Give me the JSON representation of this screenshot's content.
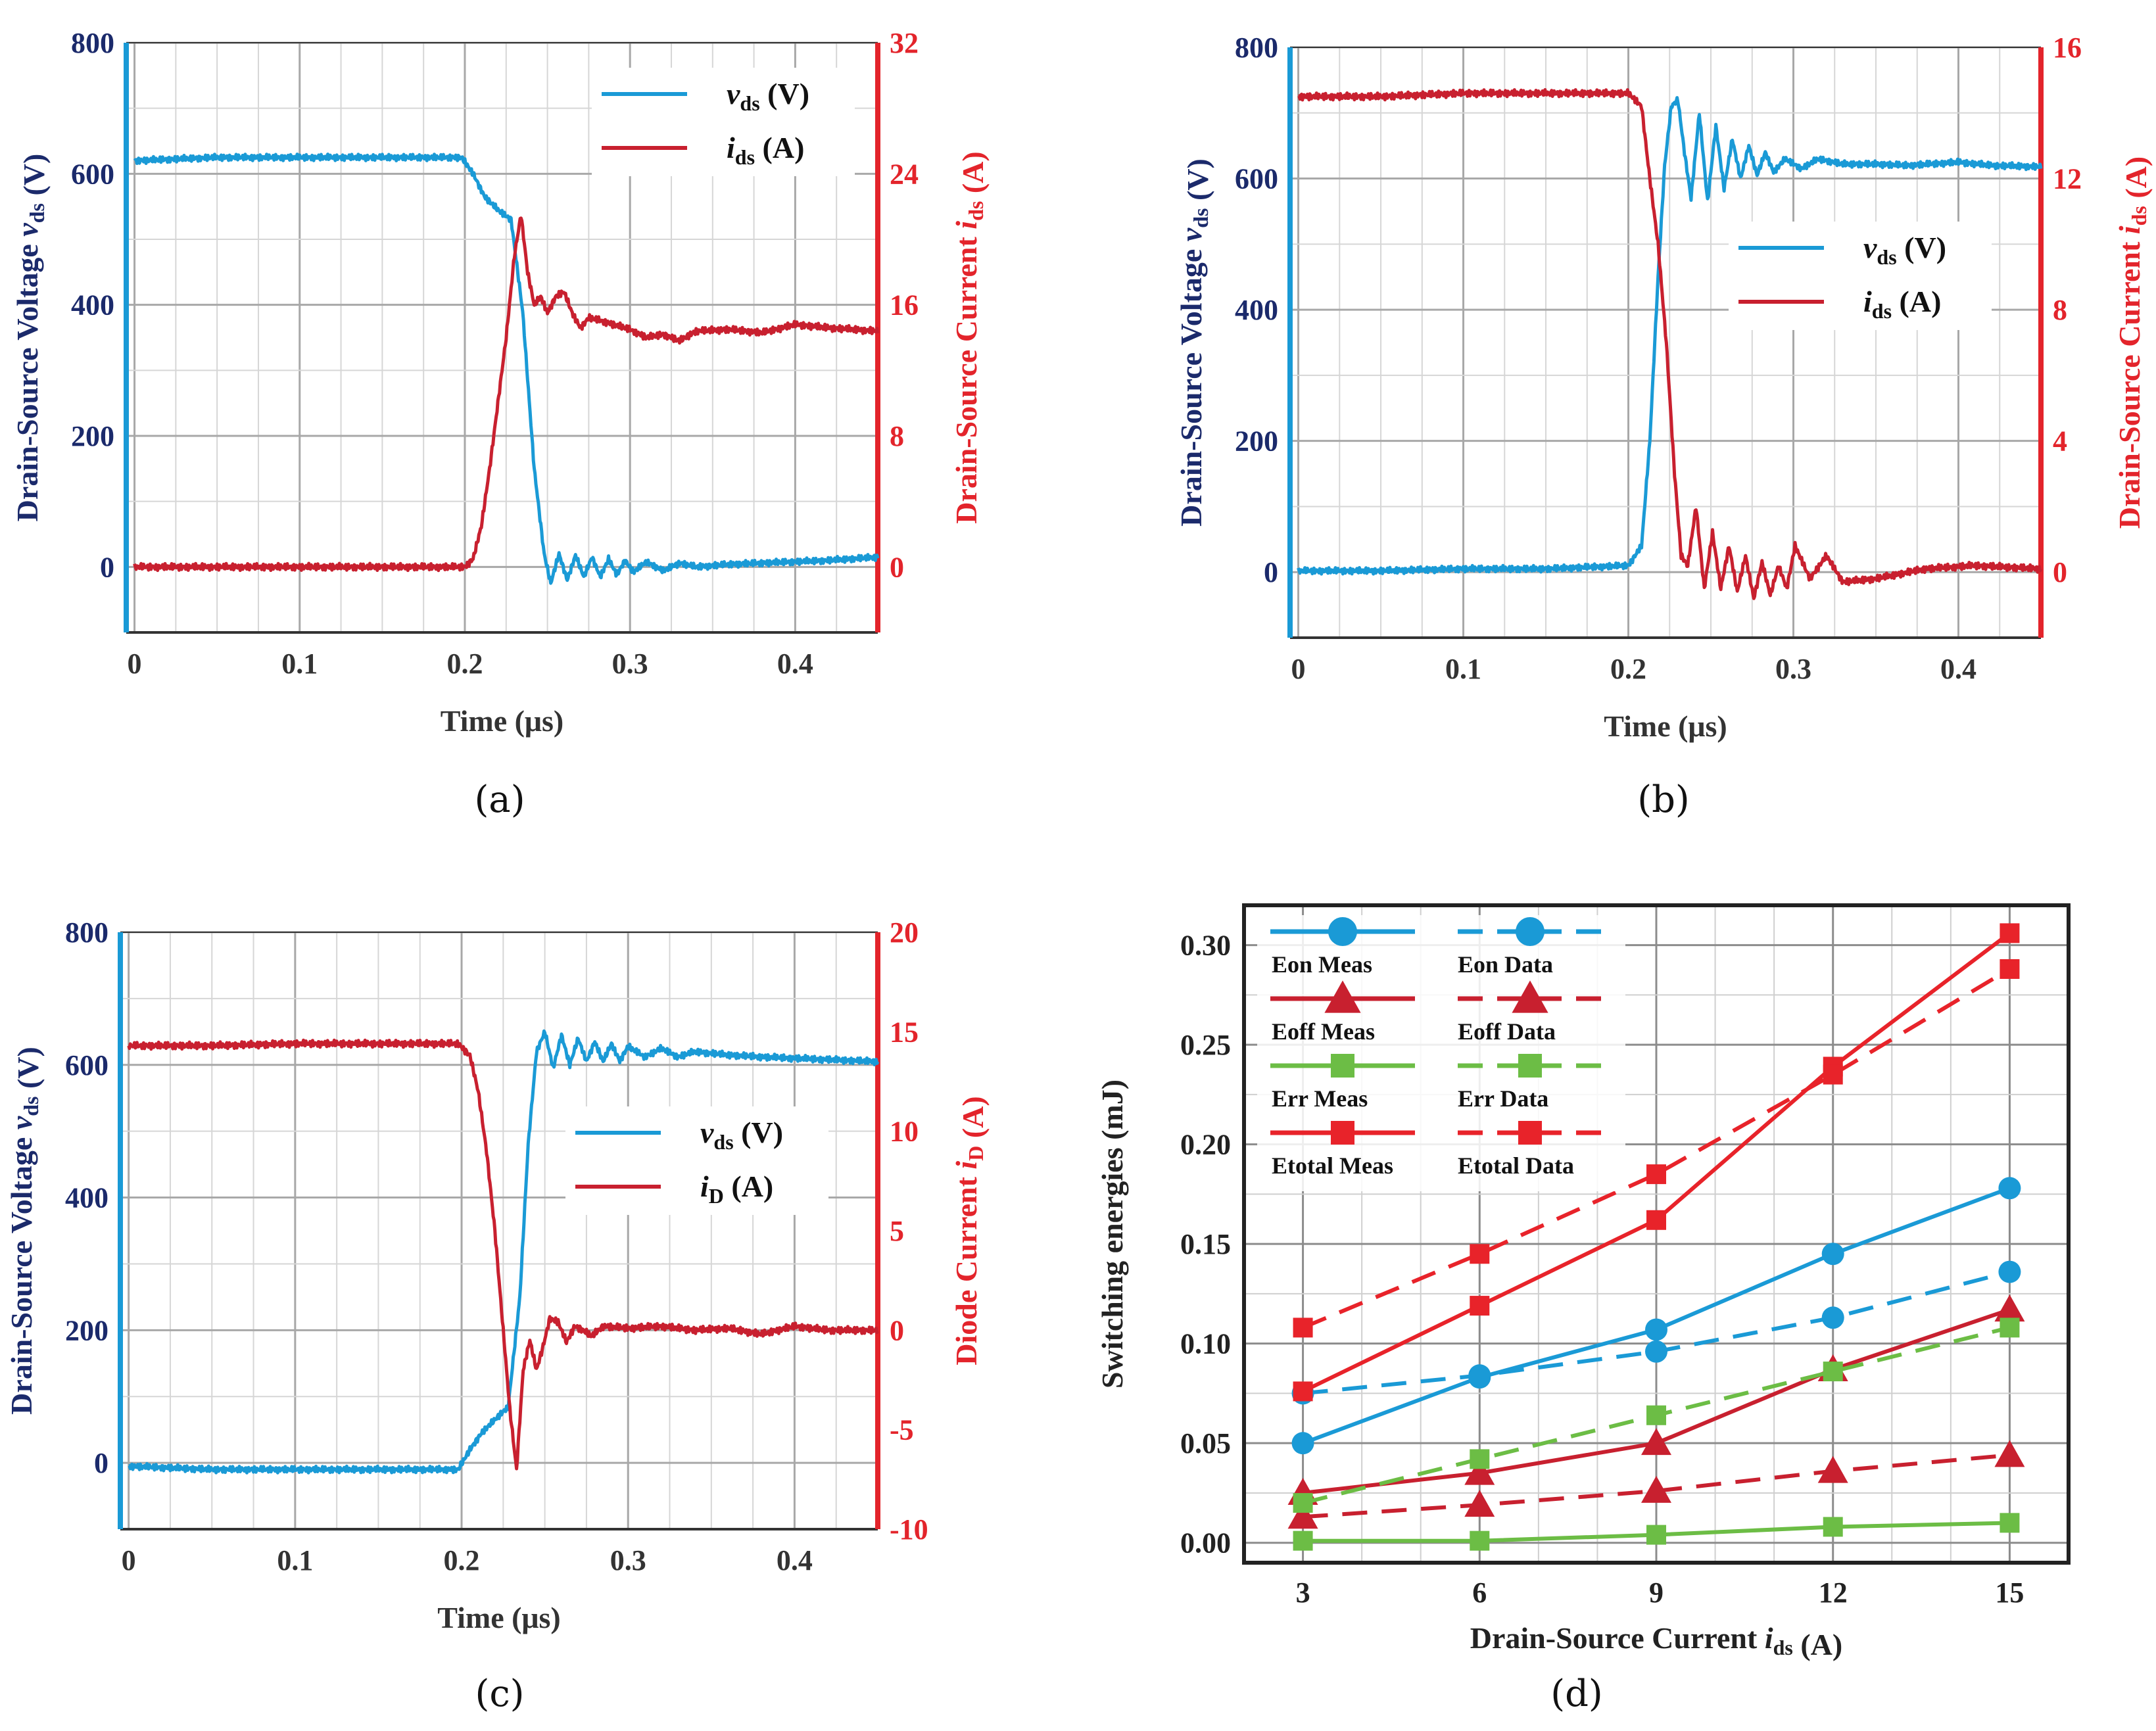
{
  "colors": {
    "blue": "#1a9ad6",
    "red": "#c8202f",
    "navy": "#1b2a6b",
    "axisRed": "#e3242b",
    "green": "#6cbd45",
    "brightRed": "#e8232a",
    "grid": "#bdbdbd"
  },
  "chart_data": [
    {
      "panel": "a",
      "caption": "(a)",
      "type": "line",
      "xlabel": "Time (μs)",
      "ylabel_left": "Drain-Source Voltage v_ds (V)",
      "ylabel_right": "Drain-Source Current i_ds (A)",
      "xlim": [
        -0.005,
        0.45
      ],
      "ylim_left": [
        -100,
        800
      ],
      "ylim_right": [
        -4,
        32
      ],
      "xticks": [
        "0",
        "0.1",
        "0.2",
        "0.3",
        "0.4"
      ],
      "xtick_values": [
        0,
        0.1,
        0.2,
        0.3,
        0.4
      ],
      "yticks_left": [
        "0",
        "200",
        "400",
        "600",
        "800"
      ],
      "ytick_left_values": [
        0,
        200,
        400,
        600,
        800
      ],
      "yticks_right": [
        "0",
        "8",
        "16",
        "24",
        "32"
      ],
      "ytick_right_values": [
        0,
        8,
        16,
        24,
        32
      ],
      "legend": {
        "position": "top-right",
        "entries": [
          {
            "sym": "v",
            "sub": "ds",
            "unit": " (V)"
          },
          {
            "sym": "i",
            "sub": "ds",
            "unit": " (A)"
          }
        ]
      },
      "series": [
        {
          "name": "vds (V)",
          "axis": "left",
          "color": "blue",
          "x": [
            0,
            0.05,
            0.1,
            0.15,
            0.198,
            0.205,
            0.212,
            0.22,
            0.228,
            0.235,
            0.242,
            0.248,
            0.252,
            0.257,
            0.262,
            0.267,
            0.272,
            0.277,
            0.282,
            0.287,
            0.292,
            0.297,
            0.302,
            0.31,
            0.32,
            0.33,
            0.34,
            0.36,
            0.38,
            0.4,
            0.42,
            0.45
          ],
          "values": [
            620,
            625,
            625,
            625,
            625,
            600,
            565,
            545,
            530,
            390,
            150,
            20,
            -25,
            20,
            -20,
            18,
            -15,
            15,
            -15,
            12,
            -12,
            10,
            -8,
            8,
            -6,
            6,
            0,
            4,
            6,
            8,
            10,
            15
          ]
        },
        {
          "name": "ids (A)",
          "axis": "right",
          "color": "red",
          "x": [
            0,
            0.05,
            0.1,
            0.15,
            0.2,
            0.205,
            0.21,
            0.215,
            0.22,
            0.225,
            0.23,
            0.234,
            0.238,
            0.242,
            0.246,
            0.25,
            0.255,
            0.26,
            0.265,
            0.27,
            0.275,
            0.28,
            0.29,
            0.3,
            0.31,
            0.32,
            0.33,
            0.34,
            0.36,
            0.38,
            0.4,
            0.42,
            0.45
          ],
          "values": [
            0,
            0,
            0,
            0,
            0,
            0.5,
            2.5,
            6,
            10,
            14,
            19,
            21.5,
            18,
            16,
            16.5,
            15.5,
            16.5,
            16.8,
            15.5,
            14.6,
            15.2,
            15.1,
            14.8,
            14.5,
            14.0,
            14.2,
            13.8,
            14.4,
            14.5,
            14.3,
            14.8,
            14.6,
            14.4
          ]
        }
      ]
    },
    {
      "panel": "b",
      "caption": "(b)",
      "type": "line",
      "xlabel": "Time (μs)",
      "ylabel_left": "Drain-Source Voltage v_ds (V)",
      "ylabel_right": "Drain-Source Current i_ds (A)",
      "xlim": [
        -0.005,
        0.45
      ],
      "ylim_left": [
        -100,
        800
      ],
      "ylim_right": [
        -2,
        16
      ],
      "xticks": [
        "0",
        "0.1",
        "0.2",
        "0.3",
        "0.4"
      ],
      "xtick_values": [
        0,
        0.1,
        0.2,
        0.3,
        0.4
      ],
      "yticks_left": [
        "0",
        "200",
        "400",
        "600",
        "800"
      ],
      "ytick_left_values": [
        0,
        200,
        400,
        600,
        800
      ],
      "yticks_right": [
        "0",
        "4",
        "8",
        "12",
        "16"
      ],
      "ytick_right_values": [
        0,
        4,
        8,
        12,
        16
      ],
      "legend": {
        "position": "center-right",
        "entries": [
          {
            "sym": "v",
            "sub": "ds",
            "unit": " (V)"
          },
          {
            "sym": "i",
            "sub": "ds",
            "unit": " (A)"
          }
        ]
      },
      "series": [
        {
          "name": "vds (V)",
          "axis": "left",
          "color": "blue",
          "x": [
            0,
            0.05,
            0.1,
            0.15,
            0.2,
            0.208,
            0.213,
            0.218,
            0.222,
            0.226,
            0.23,
            0.234,
            0.238,
            0.243,
            0.248,
            0.253,
            0.258,
            0.263,
            0.268,
            0.273,
            0.278,
            0.283,
            0.288,
            0.295,
            0.305,
            0.315,
            0.33,
            0.35,
            0.37,
            0.4,
            0.42,
            0.45
          ],
          "values": [
            2,
            2,
            5,
            5,
            10,
            40,
            200,
            450,
            620,
            710,
            720,
            640,
            570,
            700,
            565,
            680,
            585,
            660,
            600,
            650,
            605,
            640,
            610,
            630,
            615,
            630,
            622,
            622,
            620,
            625,
            620,
            618
          ]
        },
        {
          "name": "ids (A)",
          "axis": "right",
          "color": "red",
          "x": [
            0,
            0.05,
            0.1,
            0.15,
            0.2,
            0.208,
            0.213,
            0.218,
            0.223,
            0.228,
            0.232,
            0.236,
            0.241,
            0.246,
            0.251,
            0.256,
            0.261,
            0.266,
            0.271,
            0.276,
            0.281,
            0.286,
            0.291,
            0.296,
            0.301,
            0.31,
            0.32,
            0.33,
            0.35,
            0.38,
            0.41,
            0.45
          ],
          "values": [
            14.5,
            14.5,
            14.6,
            14.6,
            14.6,
            14.2,
            12,
            10,
            7,
            3,
            0.5,
            0.2,
            2,
            -0.5,
            1.2,
            -0.5,
            0.8,
            -0.6,
            0.5,
            -0.8,
            0.3,
            -0.7,
            0.2,
            -0.5,
            0.8,
            -0.2,
            0.5,
            -0.3,
            -0.2,
            0.1,
            0.2,
            0.1
          ]
        }
      ]
    },
    {
      "panel": "c",
      "caption": "(c)",
      "type": "line",
      "xlabel": "Time (μs)",
      "ylabel_left": "Drain-Source Voltage v_ds (V)",
      "ylabel_right": "Diode Current i_D (A)",
      "xlim": [
        -0.005,
        0.45
      ],
      "ylim_left": [
        -100,
        800
      ],
      "ylim_right": [
        -10,
        20
      ],
      "xticks": [
        "0",
        "0.1",
        "0.2",
        "0.3",
        "0.4"
      ],
      "xtick_values": [
        0,
        0.1,
        0.2,
        0.3,
        0.4
      ],
      "yticks_left": [
        "0",
        "200",
        "400",
        "600",
        "800"
      ],
      "ytick_left_values": [
        0,
        200,
        400,
        600,
        800
      ],
      "yticks_right": [
        "-10",
        "-5",
        "0",
        "5",
        "10",
        "15",
        "20"
      ],
      "ytick_right_values": [
        -10,
        -5,
        0,
        5,
        10,
        15,
        20
      ],
      "legend": {
        "position": "center-right",
        "entries": [
          {
            "sym": "v",
            "sub": "ds",
            "unit": " (V)"
          },
          {
            "sym": "i",
            "sub": "D",
            "unit": " (A)"
          }
        ]
      },
      "series": [
        {
          "name": "vds (V)",
          "axis": "left",
          "color": "blue",
          "x": [
            0,
            0.05,
            0.1,
            0.15,
            0.198,
            0.205,
            0.212,
            0.22,
            0.228,
            0.235,
            0.24,
            0.245,
            0.25,
            0.255,
            0.26,
            0.265,
            0.27,
            0.275,
            0.28,
            0.285,
            0.29,
            0.295,
            0.3,
            0.31,
            0.32,
            0.33,
            0.34,
            0.36,
            0.38,
            0.4,
            0.42,
            0.45
          ],
          "values": [
            -5,
            -10,
            -10,
            -10,
            -10,
            20,
            45,
            65,
            85,
            250,
            480,
            620,
            650,
            595,
            645,
            600,
            640,
            605,
            635,
            605,
            632,
            606,
            628,
            612,
            625,
            612,
            620,
            615,
            612,
            610,
            608,
            605
          ]
        },
        {
          "name": "iD (A)",
          "axis": "right",
          "color": "red",
          "x": [
            0,
            0.05,
            0.1,
            0.15,
            0.198,
            0.205,
            0.21,
            0.215,
            0.22,
            0.225,
            0.229,
            0.233,
            0.237,
            0.241,
            0.245,
            0.249,
            0.253,
            0.258,
            0.263,
            0.268,
            0.273,
            0.278,
            0.285,
            0.3,
            0.32,
            0.34,
            0.36,
            0.38,
            0.4,
            0.42,
            0.45
          ],
          "values": [
            14.3,
            14.3,
            14.4,
            14.4,
            14.4,
            13.8,
            12,
            9,
            5,
            0,
            -4,
            -7,
            -2,
            -0.5,
            -2,
            -0.8,
            0.6,
            0.4,
            -0.6,
            0.2,
            0,
            -0.3,
            0.2,
            0.1,
            0.2,
            0,
            0.1,
            -0.2,
            0.2,
            0,
            0
          ]
        }
      ]
    },
    {
      "panel": "d",
      "caption": "(d)",
      "type": "line",
      "xlabel": "Drain-Source Current i_ds (A)",
      "ylabel": "Switching energies (mJ)",
      "xlim": [
        2,
        16
      ],
      "ylim": [
        -0.01,
        0.32
      ],
      "xticks": [
        "3",
        "6",
        "9",
        "12",
        "15"
      ],
      "xtick_values": [
        3,
        6,
        9,
        12,
        15
      ],
      "yticks": [
        "0.00",
        "0.05",
        "0.10",
        "0.15",
        "0.20",
        "0.25",
        "0.30"
      ],
      "ytick_values": [
        0,
        0.05,
        0.1,
        0.15,
        0.2,
        0.25,
        0.3
      ],
      "legend_position": "top-left",
      "x": [
        3,
        6,
        9,
        12,
        15
      ],
      "series": [
        {
          "name": "Eon Meas",
          "color": "blue",
          "dash": false,
          "marker": "circle",
          "values": [
            0.05,
            0.083,
            0.107,
            0.145,
            0.178
          ]
        },
        {
          "name": "Eon Data",
          "color": "blue",
          "dash": true,
          "marker": "circle",
          "values": [
            0.075,
            0.084,
            0.096,
            0.113,
            0.136
          ]
        },
        {
          "name": "Eoff Meas",
          "color": "red",
          "dash": false,
          "marker": "triangle",
          "values": [
            0.025,
            0.035,
            0.05,
            0.087,
            0.117
          ]
        },
        {
          "name": "Eoff Data",
          "color": "red",
          "dash": true,
          "marker": "triangle",
          "values": [
            0.013,
            0.019,
            0.026,
            0.036,
            0.044
          ]
        },
        {
          "name": "Err Meas",
          "color": "green",
          "dash": false,
          "marker": "square",
          "values": [
            0.001,
            0.001,
            0.004,
            0.008,
            0.01
          ]
        },
        {
          "name": "Err Data",
          "color": "green",
          "dash": true,
          "marker": "square",
          "values": [
            0.02,
            0.042,
            0.064,
            0.086,
            0.108
          ]
        },
        {
          "name": "Etotal Meas",
          "color": "brightRed",
          "dash": false,
          "marker": "square",
          "values": [
            0.076,
            0.119,
            0.162,
            0.239,
            0.306
          ]
        },
        {
          "name": "Etotal Data",
          "color": "brightRed",
          "dash": true,
          "marker": "square",
          "values": [
            0.108,
            0.145,
            0.185,
            0.235,
            0.288
          ]
        }
      ]
    }
  ]
}
